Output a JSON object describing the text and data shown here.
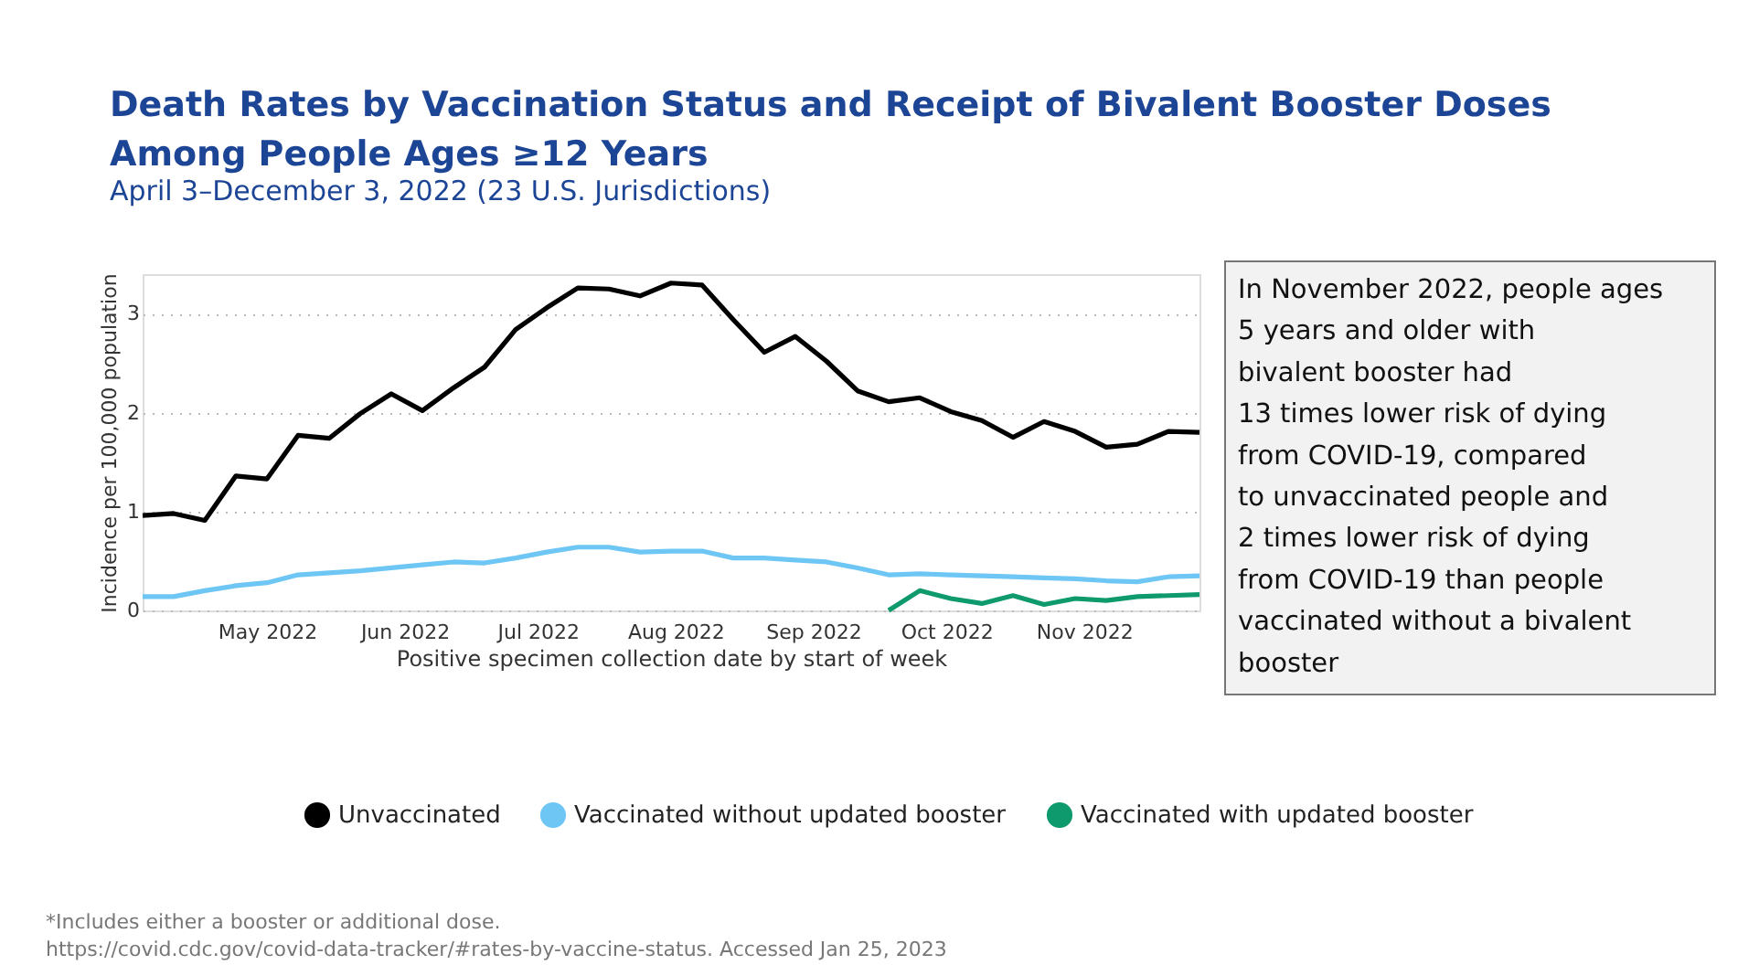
{
  "chart_data": {
    "type": "line",
    "title": "Death Rates by Vaccination Status and Receipt of Bivalent Booster Doses\nAmong People Ages ≥12 Years",
    "subtitle": "April 3–December 3, 2022 (23 U.S. Jurisdictions)",
    "xlabel": "Positive specimen collection date by start of week",
    "ylabel": "Incidence per 100,000 population",
    "x": [
      "2022-04-03",
      "2022-04-10",
      "2022-04-17",
      "2022-04-24",
      "2022-05-01",
      "2022-05-08",
      "2022-05-15",
      "2022-05-22",
      "2022-05-29",
      "2022-06-05",
      "2022-06-12",
      "2022-06-19",
      "2022-06-26",
      "2022-07-03",
      "2022-07-10",
      "2022-07-17",
      "2022-07-24",
      "2022-07-31",
      "2022-08-07",
      "2022-08-14",
      "2022-08-21",
      "2022-08-28",
      "2022-09-04",
      "2022-09-11",
      "2022-09-18",
      "2022-09-25",
      "2022-10-02",
      "2022-10-09",
      "2022-10-16",
      "2022-10-23",
      "2022-10-30",
      "2022-11-06",
      "2022-11-13",
      "2022-11-20",
      "2022-11-27"
    ],
    "series": [
      {
        "name": "Unvaccinated",
        "color": "#000000",
        "values": [
          0.96,
          0.98,
          0.91,
          1.36,
          1.33,
          1.77,
          1.74,
          1.99,
          2.19,
          2.02,
          2.25,
          2.46,
          2.84,
          3.06,
          3.26,
          3.25,
          3.18,
          3.31,
          3.29,
          2.94,
          2.61,
          2.77,
          2.52,
          2.22,
          2.11,
          2.15,
          2.01,
          1.92,
          1.75,
          1.91,
          1.81,
          1.65,
          1.68,
          1.81,
          1.8
        ]
      },
      {
        "name": "Vaccinated without updated booster",
        "color": "#6ec6f5",
        "values": [
          0.14,
          0.14,
          0.2,
          0.25,
          0.28,
          0.36,
          0.38,
          0.4,
          0.43,
          0.46,
          0.49,
          0.48,
          0.53,
          0.59,
          0.64,
          0.64,
          0.59,
          0.6,
          0.6,
          0.53,
          0.53,
          0.51,
          0.49,
          0.43,
          0.36,
          0.37,
          0.36,
          0.35,
          0.34,
          0.33,
          0.32,
          0.3,
          0.29,
          0.34,
          0.35
        ]
      },
      {
        "name": "Vaccinated with updated booster",
        "color": "#0f9a6e",
        "values": [
          null,
          null,
          null,
          null,
          null,
          null,
          null,
          null,
          null,
          null,
          null,
          null,
          null,
          null,
          null,
          null,
          null,
          null,
          null,
          null,
          null,
          null,
          null,
          null,
          0.0,
          0.2,
          0.12,
          0.07,
          0.15,
          0.06,
          0.12,
          0.1,
          0.14,
          0.15,
          0.16
        ]
      }
    ],
    "xlim": [
      "2022-04-03",
      "2022-11-27"
    ],
    "xticks": [
      {
        "value": "2022-05-01",
        "label": "May 2022"
      },
      {
        "value": "2022-06-01",
        "label": "Jun 2022"
      },
      {
        "value": "2022-07-01",
        "label": "Jul 2022"
      },
      {
        "value": "2022-08-01",
        "label": "Aug 2022"
      },
      {
        "value": "2022-09-01",
        "label": "Sep 2022"
      },
      {
        "value": "2022-10-01",
        "label": "Oct 2022"
      },
      {
        "value": "2022-11-01",
        "label": "Nov 2022"
      }
    ],
    "ylim": [
      0,
      3.4
    ],
    "yticks": [
      0,
      1,
      2,
      3
    ],
    "grid": "y",
    "legend": "bottom",
    "marker": "none",
    "line_style": "solid",
    "annotations": [
      "In November 2022, people ages",
      "5 years and older with",
      "bivalent booster had",
      "13 times lower risk of dying",
      "from COVID-19, compared",
      "to unvaccinated people and",
      "2 times lower risk of dying",
      "from COVID-19 than people",
      "vaccinated without a bivalent",
      "booster",
      "*Includes either a booster or additional dose.",
      "https://covid.cdc.gov/covid-data-tracker/#rates-by-vaccine-status. Accessed Jan 25, 2023"
    ]
  }
}
